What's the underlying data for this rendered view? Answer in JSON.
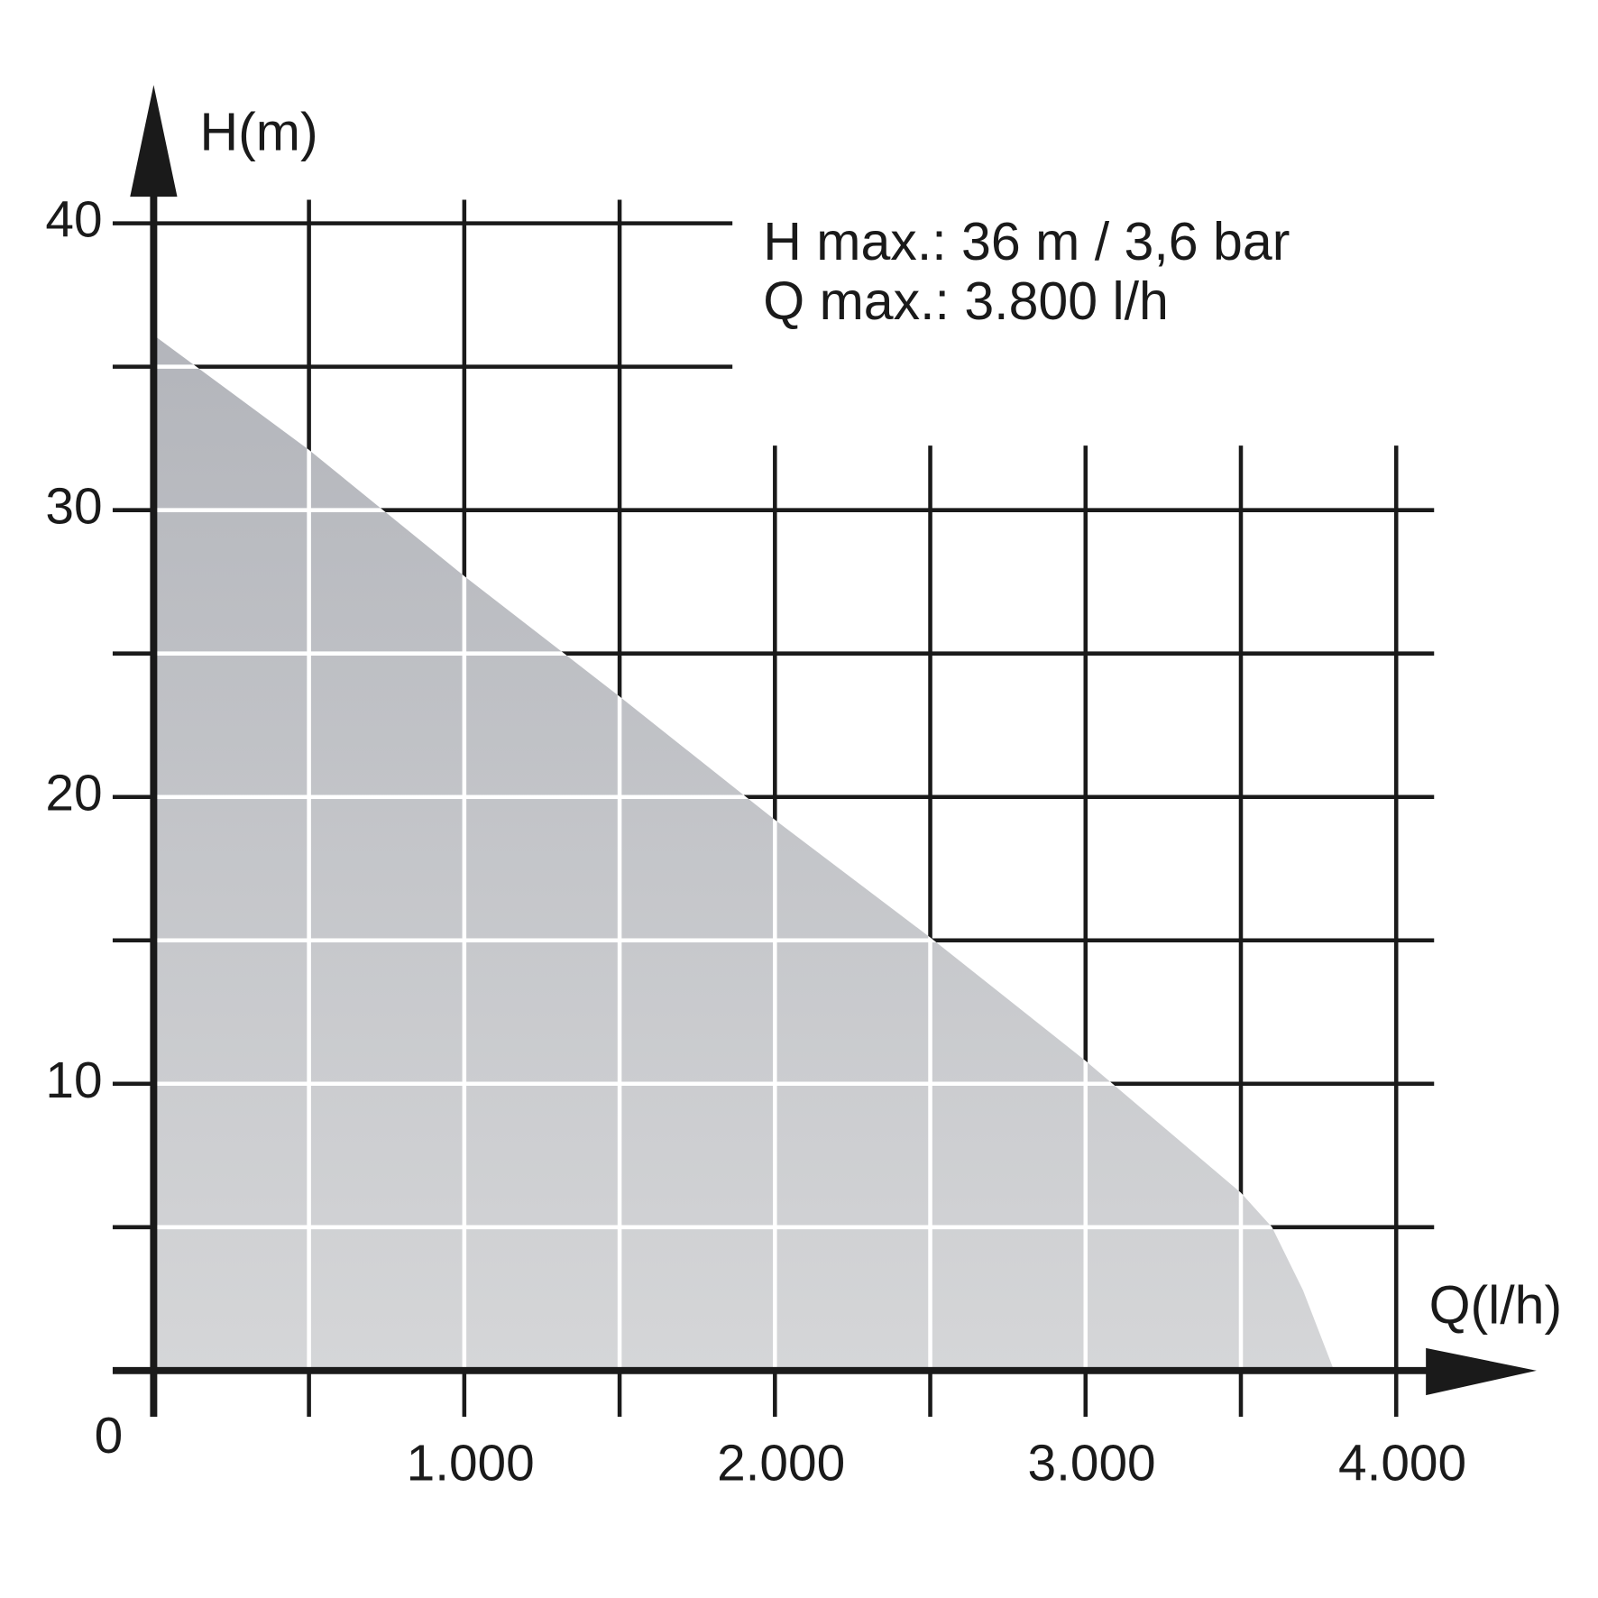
{
  "chart_data": {
    "type": "area",
    "x_label": "Q(l/h)",
    "y_label": "H(m)",
    "annotations": [
      "H max.: 36 m / 3,6 bar",
      "Q max.: 3.800 l/h"
    ],
    "x": [
      0,
      500,
      1000,
      1500,
      2000,
      2500,
      3000,
      3500,
      3600,
      3700,
      3800
    ],
    "series": [
      {
        "color": "#bfc0c4",
        "values": [
          36.1,
          32.1,
          27.7,
          23.5,
          19.2,
          15.1,
          10.8,
          6.2,
          5.0,
          2.8,
          0
        ]
      }
    ],
    "xlim": [
      0,
      4000
    ],
    "ylim": [
      0,
      40
    ],
    "xticks": [
      0,
      {
        "value": 1000,
        "label": "1.000"
      },
      {
        "value": 2000,
        "label": "2.000"
      },
      {
        "value": 3000,
        "label": "3.000"
      },
      {
        "value": 4000,
        "label": "4.000"
      }
    ],
    "xminorticks": [
      500,
      1500,
      2500,
      3500
    ],
    "yticks": [
      10,
      20,
      30,
      40
    ],
    "yminorticks": [
      5,
      15,
      25,
      35
    ],
    "grid": true
  }
}
